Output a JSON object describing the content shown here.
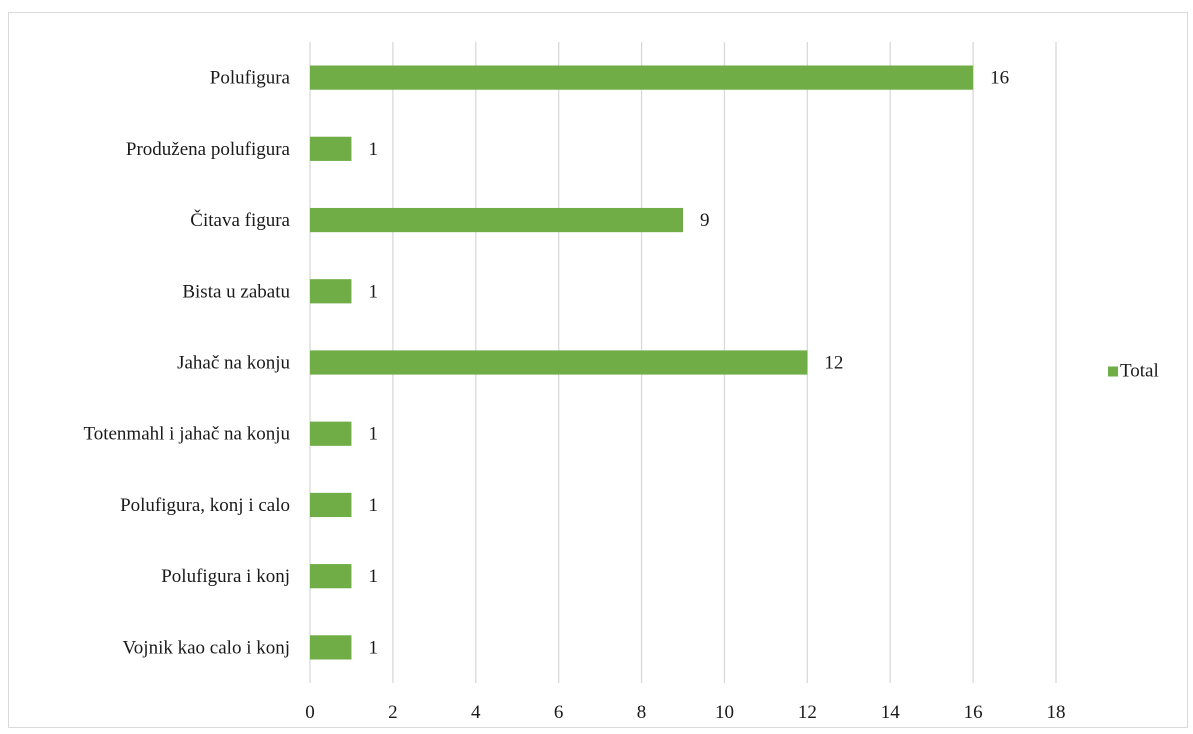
{
  "chart_data": {
    "type": "bar",
    "orientation": "horizontal",
    "title": "",
    "xlabel": "",
    "ylabel": "",
    "categories": [
      "Polufigura",
      "Produžena polufigura",
      "Čitava figura",
      "Bista u zabatu",
      "Jahač na konju",
      "Totenmahl i jahač na konju",
      "Polufigura, konj i calo",
      "Polufigura i konj",
      "Vojnik kao calo i konj"
    ],
    "series": [
      {
        "name": "Total",
        "color": "#70ad47",
        "values": [
          16,
          1,
          9,
          1,
          12,
          1,
          1,
          1,
          1
        ]
      }
    ],
    "xlim": [
      0,
      18
    ],
    "xticks": [
      0,
      2,
      4,
      6,
      8,
      10,
      12,
      14,
      16,
      18
    ],
    "grid": "vertical",
    "legend": "right",
    "data_labels": true
  }
}
